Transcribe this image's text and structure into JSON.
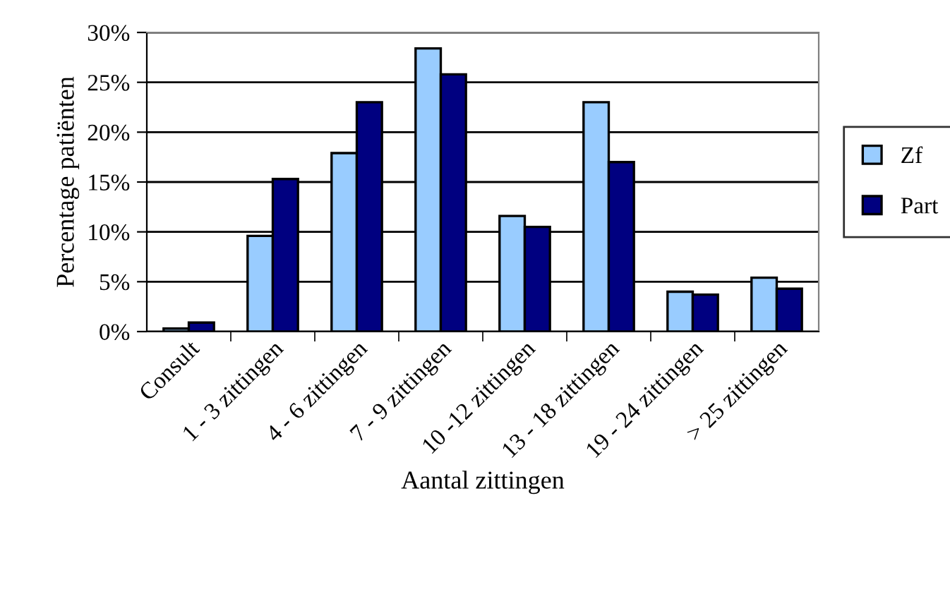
{
  "chart_data": {
    "type": "bar",
    "xlabel": "Aantal zittingen",
    "ylabel": "Percentage patiënten",
    "categories": [
      "Consult",
      "1 - 3 zittingen",
      "4 - 6 zittingen",
      "7 - 9 zittingen",
      "10 -12 zittingen",
      "13 - 18 zittingen",
      "19 - 24 zittingen",
      "> 25 zittingen"
    ],
    "series": [
      {
        "name": "Zf",
        "color": "#99ccff",
        "values": [
          0.3,
          9.6,
          17.9,
          28.4,
          11.6,
          23.0,
          4.0,
          5.4
        ]
      },
      {
        "name": "Part",
        "color": "#000080",
        "values": [
          0.9,
          15.3,
          23.0,
          25.8,
          10.5,
          17.0,
          3.7,
          4.3
        ]
      }
    ],
    "ylim": [
      0,
      30
    ],
    "yticks": [
      {
        "value": 0,
        "label": "0%"
      },
      {
        "value": 5,
        "label": "5%"
      },
      {
        "value": 10,
        "label": "10%"
      },
      {
        "value": 15,
        "label": "15%"
      },
      {
        "value": 20,
        "label": "20%"
      },
      {
        "value": 25,
        "label": "25%"
      },
      {
        "value": 30,
        "label": "30%"
      }
    ],
    "grid": "y",
    "legend": "right"
  }
}
